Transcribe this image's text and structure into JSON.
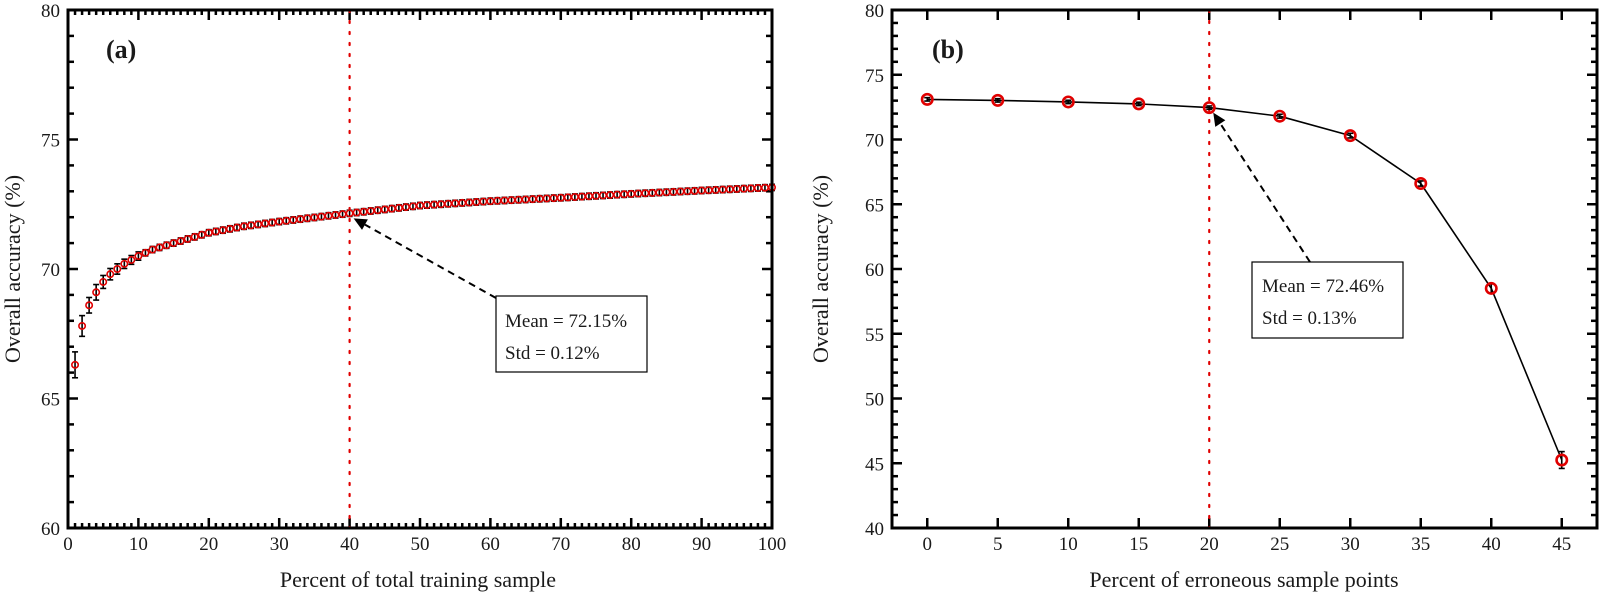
{
  "chart_data": [
    {
      "type": "scatter",
      "panel_label": "(a)",
      "xlabel": "Percent of total training sample",
      "ylabel": "Overall accuracy (%)",
      "xlim": [
        0,
        100
      ],
      "ylim": [
        60,
        80
      ],
      "xticks": [
        0,
        10,
        20,
        30,
        40,
        50,
        60,
        70,
        80,
        90,
        100
      ],
      "yticks": [
        60,
        65,
        70,
        75,
        80
      ],
      "x_minor_step": 1,
      "y_minor_step": 1,
      "grid": false,
      "marker": "open-circle",
      "marker_color": "#e00000",
      "errorbar_color": "#000000",
      "connect_line": false,
      "series": [
        {
          "name": "Overall accuracy",
          "anchor_x": [
            1,
            2,
            3,
            4,
            5,
            6,
            7,
            8,
            9,
            10,
            12,
            15,
            20,
            25,
            30,
            40,
            50,
            60,
            70,
            80,
            90,
            100
          ],
          "anchor_y": [
            66.3,
            67.8,
            68.6,
            69.1,
            69.5,
            69.8,
            70.0,
            70.2,
            70.35,
            70.5,
            70.75,
            71.0,
            71.4,
            71.65,
            71.83,
            72.15,
            72.45,
            72.62,
            72.75,
            72.9,
            73.03,
            73.15
          ],
          "x_step": 1,
          "error_std_first": [
            0.5,
            0.4,
            0.3,
            0.3,
            0.25,
            0.22,
            0.2,
            0.18,
            0.17,
            0.16
          ],
          "error_std_rest": 0.12
        }
      ],
      "vline": {
        "x": 40,
        "style": "dotted",
        "color": "#e00000"
      },
      "annotation": {
        "lines": [
          "Mean = 72.15%",
          "Std = 0.12%"
        ],
        "arrow_target": {
          "x": 40,
          "y": 72.15
        },
        "position": "center-right"
      }
    },
    {
      "type": "line",
      "panel_label": "(b)",
      "xlabel": "Percent of erroneous sample points",
      "ylabel": "Overall accuracy (%)",
      "xlim": [
        -2.5,
        47.5
      ],
      "ylim": [
        40,
        80
      ],
      "xticks": [
        0,
        5,
        10,
        15,
        20,
        25,
        30,
        35,
        40,
        45
      ],
      "yticks": [
        40,
        45,
        50,
        55,
        60,
        65,
        70,
        75,
        80
      ],
      "y_minor_step": 1,
      "grid": false,
      "marker": "open-circle",
      "marker_color": "#e00000",
      "line_color": "#000000",
      "connect_line": true,
      "series": [
        {
          "name": "Overall accuracy",
          "x": [
            0,
            5,
            10,
            15,
            20,
            25,
            30,
            35,
            40,
            45
          ],
          "y": [
            73.1,
            73.02,
            72.9,
            72.75,
            72.46,
            71.8,
            70.3,
            66.6,
            58.5,
            45.25
          ],
          "error": [
            0.13,
            0.13,
            0.13,
            0.13,
            0.13,
            0.15,
            0.18,
            0.2,
            0.35,
            0.65
          ]
        }
      ],
      "vline": {
        "x": 20,
        "style": "dotted",
        "color": "#e00000"
      },
      "annotation": {
        "lines": [
          "Mean = 72.46%",
          "Std = 0.13%"
        ],
        "arrow_target": {
          "x": 20,
          "y": 72.46
        },
        "position": "center"
      }
    }
  ]
}
